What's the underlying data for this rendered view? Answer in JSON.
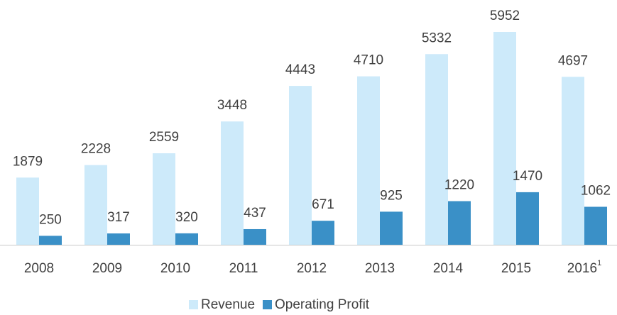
{
  "chart_data": {
    "type": "bar",
    "categories": [
      "2008",
      "2009",
      "2010",
      "2011",
      "2012",
      "2013",
      "2014",
      "2015",
      "2016"
    ],
    "category_superscripts": [
      null,
      null,
      null,
      null,
      null,
      null,
      null,
      null,
      "1"
    ],
    "series": [
      {
        "name": "Revenue",
        "color": "#cdeafa",
        "values": [
          1879,
          2228,
          2559,
          3448,
          4443,
          4710,
          5332,
          5952,
          4697
        ]
      },
      {
        "name": "Operating Profit",
        "color": "#3a90c7",
        "values": [
          250,
          317,
          320,
          437,
          671,
          925,
          1220,
          1470,
          1062
        ]
      }
    ],
    "legend": "bottom"
  }
}
